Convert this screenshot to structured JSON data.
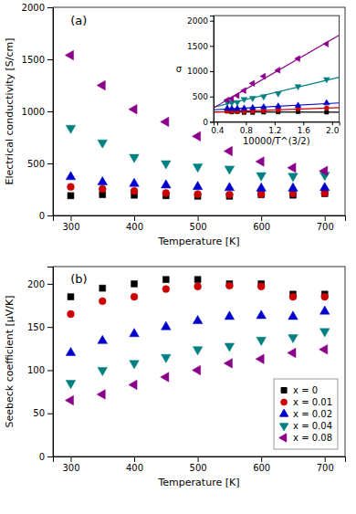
{
  "chart_data": [
    {
      "type": "scatter",
      "title": "(a)",
      "xlabel": "Temperature [K]",
      "ylabel": "Electrical conductivity [S/cm]",
      "xlim": [
        272,
        732
      ],
      "ylim": [
        0,
        2000
      ],
      "xticks": [
        300,
        400,
        500,
        600,
        700
      ],
      "yticks": [
        0,
        500,
        1000,
        1500,
        2000
      ],
      "grid": false,
      "series": [
        {
          "color": "#000000",
          "marker": "square",
          "x": [
            300,
            350,
            400,
            450,
            500,
            550,
            600,
            650,
            700
          ],
          "values": [
            190,
            200,
            195,
            190,
            185,
            185,
            200,
            195,
            210
          ]
        },
        {
          "color": "#cc0000",
          "marker": "circle",
          "x": [
            300,
            350,
            400,
            450,
            500,
            550,
            600,
            650,
            700
          ],
          "values": [
            275,
            255,
            235,
            215,
            205,
            200,
            205,
            210,
            215
          ]
        },
        {
          "color": "#0000cc",
          "marker": "triangle-up",
          "x": [
            300,
            350,
            400,
            450,
            500,
            550,
            600,
            650,
            700
          ],
          "values": [
            370,
            320,
            305,
            290,
            275,
            265,
            260,
            260,
            265
          ]
        },
        {
          "color": "#008080",
          "marker": "triangle-down",
          "x": [
            300,
            350,
            400,
            450,
            500,
            550,
            600,
            650,
            700
          ],
          "values": [
            840,
            700,
            560,
            500,
            468,
            448,
            385,
            378,
            388
          ]
        },
        {
          "color": "#8B008B",
          "marker": "triangle-left",
          "x": [
            300,
            350,
            400,
            450,
            500,
            550,
            600,
            650,
            700
          ],
          "values": [
            1540,
            1250,
            1020,
            900,
            760,
            618,
            518,
            458,
            428
          ]
        }
      ]
    },
    {
      "type": "scatter",
      "xlabel": "10000/T^(3/2)",
      "ylabel": "σ",
      "xlim": [
        0.35,
        2.1
      ],
      "ylim": [
        0,
        2100
      ],
      "xticks": [
        0.4,
        0.8,
        1.2,
        1.6,
        {
          "value": 2.0,
          "label": "2.0"
        }
      ],
      "yticks": [
        0,
        500,
        1000,
        1500,
        2000
      ],
      "grid": false,
      "series": [
        {
          "type": "line",
          "color": "#000000",
          "x": [
            0.35,
            2.1
          ],
          "values": [
            197.31,
            189.91
          ]
        },
        {
          "type": "line",
          "color": "#cc0000",
          "x": [
            0.35,
            2.1
          ],
          "values": [
            188.93,
            279.3
          ]
        },
        {
          "type": "line",
          "color": "#0000cc",
          "x": [
            0.35,
            2.1
          ],
          "values": [
            237.48,
            373.24
          ]
        },
        {
          "type": "line",
          "color": "#008080",
          "x": [
            0.35,
            2.1
          ],
          "values": [
            289.96,
            880.88
          ]
        },
        {
          "type": "line",
          "color": "#8B008B",
          "x": [
            0.35,
            2.1
          ],
          "values": [
            276.56,
            1713.54
          ]
        },
        {
          "type": "scatter",
          "color": "#000000",
          "marker": "square",
          "x": [
            0.5399,
            0.6034,
            0.6804,
            0.7753,
            0.8944,
            1.0476,
            1.25,
            1.5272,
            1.9245
          ],
          "values": [
            210,
            195,
            200,
            185,
            185,
            190,
            195,
            200,
            190
          ]
        },
        {
          "type": "scatter",
          "color": "#cc0000",
          "marker": "circle",
          "x": [
            0.5399,
            0.6034,
            0.6804,
            0.7753,
            0.8944,
            1.0476,
            1.25,
            1.5272,
            1.9245
          ],
          "values": [
            215,
            210,
            205,
            200,
            205,
            215,
            235,
            255,
            275
          ]
        },
        {
          "type": "scatter",
          "color": "#0000cc",
          "marker": "triangle-up",
          "x": [
            0.5399,
            0.6034,
            0.6804,
            0.7753,
            0.8944,
            1.0476,
            1.25,
            1.5272,
            1.9245
          ],
          "values": [
            265,
            260,
            260,
            265,
            275,
            290,
            305,
            320,
            370
          ]
        },
        {
          "type": "scatter",
          "color": "#008080",
          "marker": "triangle-down",
          "x": [
            0.5399,
            0.6034,
            0.6804,
            0.7753,
            0.8944,
            1.0476,
            1.25,
            1.5272,
            1.9245
          ],
          "values": [
            388,
            378,
            385,
            448,
            468,
            500,
            560,
            700,
            840
          ]
        },
        {
          "type": "scatter",
          "color": "#8B008B",
          "marker": "triangle-left",
          "x": [
            0.5399,
            0.6034,
            0.6804,
            0.7753,
            0.8944,
            1.0476,
            1.25,
            1.5272,
            1.9245
          ],
          "values": [
            428,
            458,
            518,
            618,
            760,
            900,
            1020,
            1250,
            1540
          ]
        }
      ]
    },
    {
      "type": "scatter",
      "title": "(b)",
      "xlabel": "Temperature [K]",
      "ylabel": "Seebeck coefficient [μV/K]",
      "xlim": [
        272,
        732
      ],
      "ylim": [
        0,
        220
      ],
      "xticks": [
        300,
        400,
        500,
        600,
        700
      ],
      "yticks": [
        0,
        50,
        100,
        150,
        200
      ],
      "grid": false,
      "legend": "lower right",
      "series": [
        {
          "name": "x = 0",
          "color": "#000000",
          "marker": "square",
          "x": [
            300,
            350,
            400,
            450,
            500,
            550,
            600,
            650,
            700
          ],
          "values": [
            185,
            195,
            200,
            205,
            205,
            200,
            200,
            188,
            188
          ]
        },
        {
          "name": "x = 0.01",
          "color": "#cc0000",
          "marker": "circle",
          "x": [
            300,
            350,
            400,
            450,
            500,
            550,
            600,
            650,
            700
          ],
          "values": [
            165,
            180,
            185,
            194,
            197,
            198,
            197,
            185,
            185
          ]
        },
        {
          "name": "x = 0.02",
          "color": "#0000cc",
          "marker": "triangle-up",
          "x": [
            300,
            350,
            400,
            450,
            500,
            550,
            600,
            650,
            700
          ],
          "values": [
            120,
            134,
            142,
            150,
            157,
            162,
            163,
            162,
            168
          ]
        },
        {
          "name": "x = 0.04",
          "color": "#008080",
          "marker": "triangle-down",
          "x": [
            300,
            350,
            400,
            450,
            500,
            550,
            600,
            650,
            700
          ],
          "values": [
            85,
            100,
            108,
            115,
            124,
            128,
            135,
            138,
            145
          ]
        },
        {
          "name": "x = 0.08",
          "color": "#8B008B",
          "marker": "triangle-left",
          "x": [
            300,
            350,
            400,
            450,
            500,
            550,
            600,
            650,
            700
          ],
          "values": [
            65,
            72,
            83,
            92,
            100,
            108,
            113,
            120,
            124
          ]
        }
      ]
    }
  ]
}
